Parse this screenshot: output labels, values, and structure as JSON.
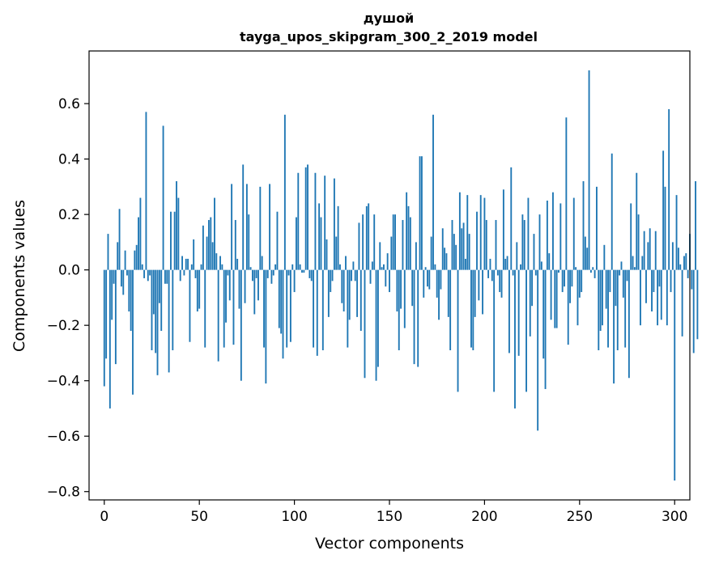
{
  "chart_data": {
    "type": "bar",
    "title_line1": "душой",
    "title_line2": "tayga_upos_skipgram_300_2_2019 model",
    "xlabel": "Vector components",
    "ylabel": "Components values",
    "xlim": [
      -8,
      308
    ],
    "ylim": [
      -0.83,
      0.79
    ],
    "xticks": [
      0,
      50,
      100,
      150,
      200,
      250,
      300
    ],
    "xtick_labels": [
      "0",
      "50",
      "100",
      "150",
      "200",
      "250",
      "300"
    ],
    "yticks": [
      -0.8,
      -0.6,
      -0.4,
      -0.2,
      0.0,
      0.2,
      0.4,
      0.6
    ],
    "ytick_labels": [
      "−0.8",
      "−0.6",
      "−0.4",
      "−0.2",
      "0.0",
      "0.2",
      "0.4",
      "0.6"
    ],
    "bar_color": "#1f77b4",
    "grid": false,
    "values": [
      -0.42,
      -0.32,
      0.13,
      -0.5,
      -0.18,
      -0.05,
      -0.34,
      0.1,
      0.22,
      -0.06,
      -0.09,
      0.07,
      -0.02,
      -0.15,
      -0.22,
      -0.45,
      0.07,
      0.09,
      0.19,
      0.26,
      0.02,
      -0.03,
      0.57,
      -0.04,
      -0.02,
      -0.29,
      -0.16,
      -0.3,
      -0.38,
      -0.12,
      -0.22,
      0.52,
      -0.05,
      -0.05,
      -0.37,
      0.21,
      -0.29,
      0.21,
      0.32,
      0.26,
      -0.04,
      0.05,
      -0.02,
      0.04,
      0.04,
      -0.26,
      0.02,
      0.11,
      -0.03,
      -0.15,
      -0.14,
      0.02,
      0.16,
      -0.28,
      0.12,
      0.18,
      0.19,
      0.1,
      0.26,
      0.06,
      -0.33,
      0.05,
      0.02,
      -0.28,
      -0.19,
      -0.02,
      -0.11,
      0.31,
      -0.27,
      0.18,
      0.04,
      -0.14,
      -0.4,
      0.38,
      -0.12,
      0.31,
      0.2,
      0.01,
      -0.04,
      -0.16,
      -0.03,
      -0.11,
      0.3,
      0.05,
      -0.28,
      -0.41,
      -0.03,
      0.31,
      -0.05,
      -0.02,
      0.02,
      0.21,
      -0.21,
      -0.23,
      -0.32,
      0.56,
      -0.28,
      -0.02,
      -0.26,
      0.02,
      -0.08,
      0.19,
      0.35,
      0.02,
      -0.01,
      -0.01,
      0.37,
      0.38,
      -0.03,
      -0.04,
      -0.28,
      0.35,
      -0.31,
      0.24,
      0.19,
      -0.29,
      0.34,
      0.11,
      -0.17,
      -0.08,
      -0.04,
      0.33,
      0.12,
      0.23,
      0.02,
      -0.12,
      -0.15,
      0.05,
      -0.28,
      -0.18,
      -0.04,
      0.03,
      -0.04,
      -0.17,
      0.17,
      -0.22,
      0.2,
      -0.39,
      0.23,
      0.24,
      -0.05,
      0.03,
      0.2,
      -0.4,
      -0.35,
      0.1,
      0.01,
      0.02,
      -0.06,
      0.06,
      -0.08,
      0.12,
      0.2,
      0.2,
      -0.15,
      -0.29,
      -0.14,
      0.18,
      -0.21,
      0.28,
      0.23,
      0.19,
      -0.13,
      -0.34,
      0.1,
      -0.35,
      0.41,
      0.41,
      -0.1,
      0.01,
      -0.06,
      -0.07,
      0.12,
      0.56,
      0.02,
      -0.1,
      -0.18,
      -0.07,
      0.15,
      0.08,
      0.06,
      -0.17,
      -0.29,
      0.18,
      0.13,
      0.09,
      -0.44,
      0.28,
      0.15,
      0.17,
      0.04,
      0.27,
      0.13,
      -0.28,
      -0.29,
      -0.17,
      0.21,
      -0.11,
      0.27,
      -0.16,
      0.26,
      0.18,
      -0.03,
      0.04,
      -0.04,
      -0.44,
      0.18,
      -0.02,
      -0.08,
      -0.1,
      0.29,
      0.04,
      0.05,
      -0.3,
      0.37,
      -0.02,
      -0.5,
      0.1,
      -0.31,
      0.02,
      0.2,
      0.18,
      -0.44,
      0.26,
      -0.24,
      -0.13,
      0.13,
      -0.02,
      -0.58,
      0.2,
      0.03,
      -0.32,
      -0.43,
      0.25,
      0.06,
      -0.18,
      0.28,
      -0.21,
      -0.21,
      -0.01,
      0.24,
      -0.08,
      -0.06,
      0.55,
      -0.27,
      -0.12,
      -0.06,
      0.26,
      0.01,
      -0.2,
      -0.1,
      -0.08,
      0.32,
      0.12,
      0.08,
      0.72,
      -0.01,
      0.01,
      -0.03,
      0.3,
      -0.29,
      -0.22,
      -0.2,
      0.09,
      -0.14,
      -0.28,
      -0.08,
      0.42,
      -0.41,
      -0.13,
      -0.29,
      -0.02,
      0.03,
      -0.1,
      -0.28,
      -0.04,
      -0.39,
      0.24,
      0.05,
      0.01,
      0.35,
      0.2,
      -0.2,
      0.05,
      0.14,
      -0.12,
      0.1,
      0.15,
      -0.15,
      -0.08,
      0.14,
      -0.2,
      -0.06,
      -0.18,
      0.43,
      0.3,
      -0.2,
      0.58,
      -0.08,
      0.1,
      -0.76,
      0.27,
      0.08,
      0.02,
      -0.24,
      0.05,
      0.06,
      -0.03,
      0.13,
      -0.07,
      -0.3,
      0.32,
      -0.25
    ]
  }
}
